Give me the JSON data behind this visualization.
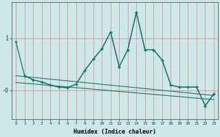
{
  "xlabel": "Humidex (Indice chaleur)",
  "x_values": [
    0,
    1,
    2,
    3,
    4,
    5,
    6,
    7,
    8,
    9,
    10,
    11,
    12,
    13,
    14,
    15,
    16,
    17,
    18,
    19,
    20,
    21,
    22,
    23
  ],
  "line1": [
    0.93,
    0.28,
    0.2,
    0.16,
    0.1,
    0.06,
    0.05,
    0.12,
    0.38,
    0.6,
    0.8,
    1.12,
    0.45,
    0.78,
    1.5,
    0.78,
    0.78,
    0.58,
    0.1,
    0.06,
    0.06,
    0.06,
    -0.3,
    -0.07
  ],
  "line2_x": [
    1,
    2,
    3,
    4,
    5,
    6,
    7,
    8,
    9,
    10,
    11,
    12,
    13,
    14,
    15,
    16,
    17,
    18,
    19,
    20,
    21,
    22,
    23
  ],
  "line2": [
    0.28,
    0.2,
    0.16,
    0.1,
    0.06,
    0.05,
    0.12,
    0.38,
    0.6,
    0.8,
    1.12,
    0.45,
    0.78,
    1.5,
    0.78,
    0.78,
    0.58,
    0.1,
    0.06,
    0.06,
    0.06,
    -0.3,
    -0.07
  ],
  "trend1_x": [
    0,
    23
  ],
  "trend1_y": [
    0.28,
    -0.1
  ],
  "trend2_x": [
    0,
    23
  ],
  "trend2_y": [
    0.15,
    -0.18
  ],
  "bg_color": "#cce8e8",
  "line_color": "#1a7070",
  "grid_color_x": "#e08080",
  "grid_color_y": "#e08080",
  "ylim": [
    -0.55,
    1.7
  ],
  "xlim": [
    -0.5,
    23.5
  ],
  "ytick_positions": [
    1.0,
    0.0
  ],
  "ytick_labels": [
    "1",
    "-0"
  ],
  "xtick_labels": [
    "0",
    "1",
    "2",
    "3",
    "4",
    "5",
    "6",
    "7",
    "8",
    "9",
    "10",
    "11",
    "12",
    "13",
    "14",
    "15",
    "16",
    "17",
    "18",
    "19",
    "20",
    "21",
    "22",
    "23"
  ]
}
